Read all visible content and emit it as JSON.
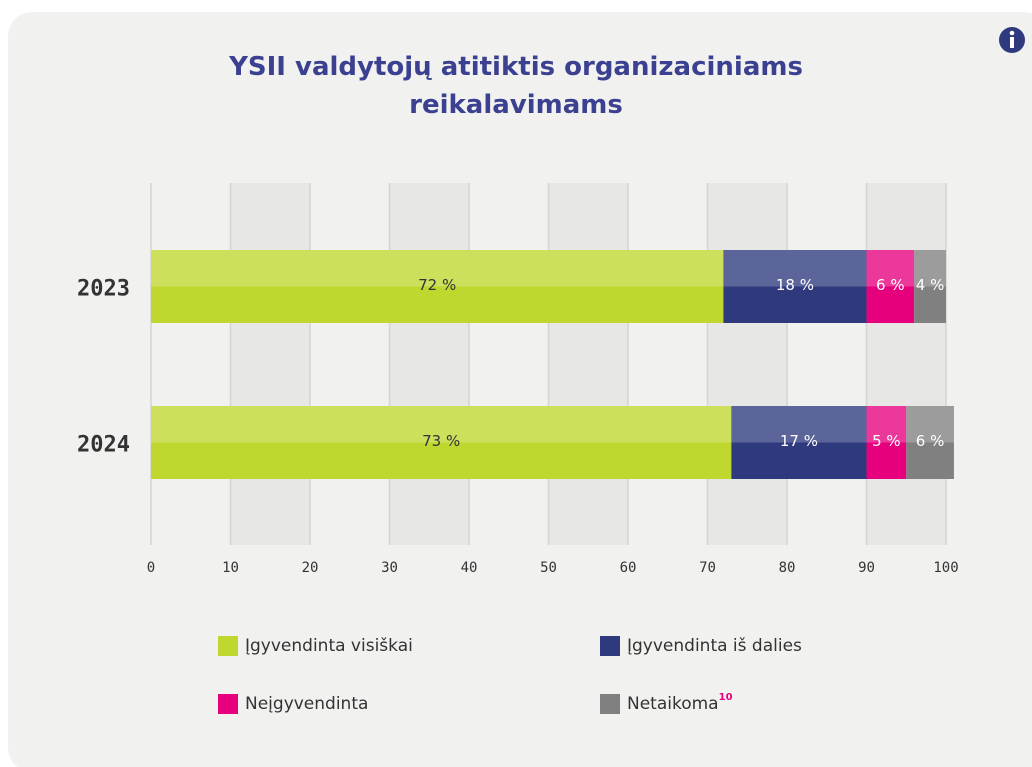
{
  "chart_data": {
    "type": "stacked_bar_horizontal",
    "title": "YSII valdytojų atitiktis organizaciniams reikalavimams",
    "categories": [
      "2023",
      "2024"
    ],
    "series": [
      {
        "name": "Įgyvendinta visiškai",
        "color": "#c0d72f",
        "values": [
          72,
          73
        ],
        "value_labels": [
          "72 %",
          "73 %"
        ]
      },
      {
        "name": "Įgyvendinta iš dalies",
        "color": "#2f3a7e",
        "values": [
          18,
          17
        ],
        "value_labels": [
          "18 %",
          "17 %"
        ]
      },
      {
        "name": "Neįgyvendinta",
        "color": "#e6007e",
        "values": [
          6,
          5
        ],
        "value_labels": [
          "6 %",
          "5 %"
        ]
      },
      {
        "name": "Netaikoma",
        "note": "10",
        "color": "#808080",
        "values": [
          4,
          6
        ],
        "value_labels": [
          "4 %",
          "6 %"
        ]
      }
    ],
    "xlim": [
      0,
      100
    ],
    "xticks": [
      0,
      10,
      20,
      30,
      40,
      50,
      60,
      70,
      80,
      90,
      100
    ],
    "grid": true
  }
}
